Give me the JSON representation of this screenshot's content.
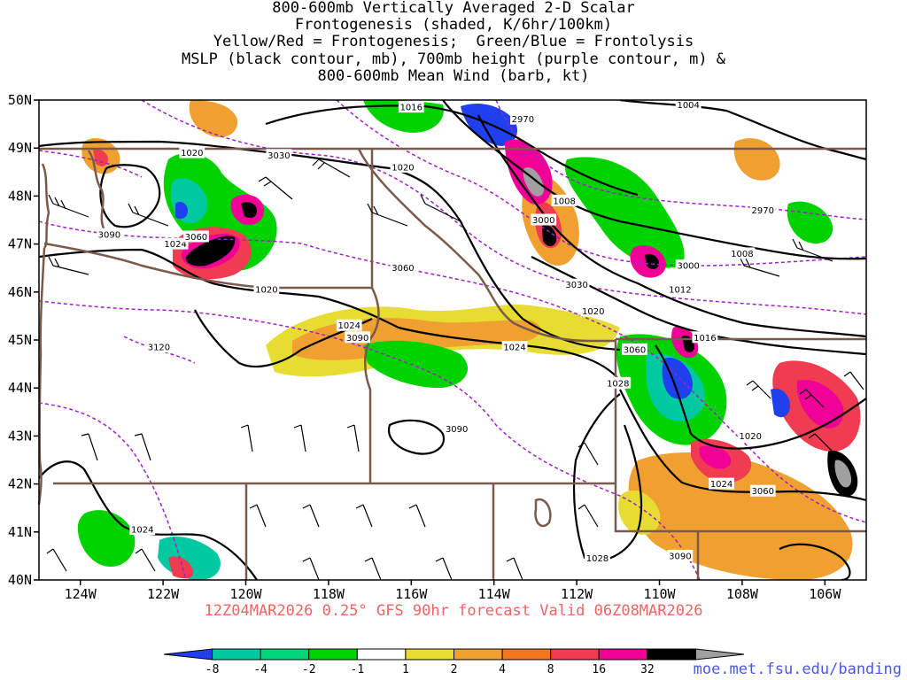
{
  "title_lines": [
    "800-600mb Vertically Averaged 2-D Scalar",
    "Frontogenesis (shaded, K/6hr/100km)",
    "Yellow/Red = Frontogenesis;  Green/Blue = Frontolysis",
    "MSLP (black contour, mb), 700mb height (purple contour, m) &",
    "800-600mb Mean Wind (barb, kt)"
  ],
  "map": {
    "lon_range": [
      -125,
      -105
    ],
    "lat_range": [
      40,
      50
    ],
    "lat_ticks": [
      "50N",
      "49N",
      "48N",
      "47N",
      "46N",
      "45N",
      "44N",
      "43N",
      "42N",
      "41N",
      "40N"
    ],
    "lon_ticks": [
      "124W",
      "122W",
      "120W",
      "118W",
      "116W",
      "114W",
      "112W",
      "110W",
      "108W",
      "106W"
    ],
    "colors": {
      "border": "#7a5a4a",
      "mslp": "#000000",
      "height": "#a020c8",
      "frontolysis_strong": "#2040f0",
      "frontolysis": "#00c8a0",
      "frontolysis_weak": "#00d200",
      "frontogenesis_weak": "#e6dc32",
      "frontogenesis": "#f0a030",
      "frontogenesis_mid": "#f07820",
      "frontogenesis_strong": "#f03c50",
      "frontogenesis_max": "#f00096"
    },
    "mslp_labels": [
      {
        "text": "1016",
        "lon": -116.0,
        "lat": 49.85
      },
      {
        "text": "1004",
        "lon": -109.3,
        "lat": 49.9
      },
      {
        "text": "1020",
        "lon": -121.3,
        "lat": 48.9
      },
      {
        "text": "1020",
        "lon": -116.2,
        "lat": 48.6
      },
      {
        "text": "1008",
        "lon": -112.3,
        "lat": 47.9
      },
      {
        "text": "1024",
        "lon": -121.7,
        "lat": 47.0
      },
      {
        "text": "1008",
        "lon": -108.0,
        "lat": 46.8
      },
      {
        "text": "1020",
        "lon": -119.5,
        "lat": 46.05
      },
      {
        "text": "1012",
        "lon": -109.5,
        "lat": 46.05
      },
      {
        "text": "1020",
        "lon": -111.6,
        "lat": 45.6
      },
      {
        "text": "1024",
        "lon": -117.5,
        "lat": 45.3
      },
      {
        "text": "1016",
        "lon": -108.9,
        "lat": 45.05
      },
      {
        "text": "1024",
        "lon": -113.5,
        "lat": 44.85
      },
      {
        "text": "1028",
        "lon": -111.0,
        "lat": 44.1
      },
      {
        "text": "1020",
        "lon": -107.8,
        "lat": 43.0
      },
      {
        "text": "1024",
        "lon": -108.5,
        "lat": 42.0
      },
      {
        "text": "1024",
        "lon": -122.5,
        "lat": 41.05
      },
      {
        "text": "1028",
        "lon": -111.5,
        "lat": 40.45
      }
    ],
    "height_labels": [
      {
        "text": "2970",
        "lon": -113.3,
        "lat": 49.6
      },
      {
        "text": "3030",
        "lon": -119.2,
        "lat": 48.85
      },
      {
        "text": "2970",
        "lon": -107.5,
        "lat": 47.7
      },
      {
        "text": "3000",
        "lon": -112.8,
        "lat": 47.5
      },
      {
        "text": "3090",
        "lon": -123.3,
        "lat": 47.2
      },
      {
        "text": "3060",
        "lon": -121.2,
        "lat": 47.15
      },
      {
        "text": "3060",
        "lon": -116.2,
        "lat": 46.5
      },
      {
        "text": "3000",
        "lon": -109.3,
        "lat": 46.55
      },
      {
        "text": "3030",
        "lon": -112.0,
        "lat": 46.15
      },
      {
        "text": "3090",
        "lon": -117.3,
        "lat": 45.05
      },
      {
        "text": "3060",
        "lon": -110.6,
        "lat": 44.8
      },
      {
        "text": "3120",
        "lon": -122.1,
        "lat": 44.85
      },
      {
        "text": "3090",
        "lon": -114.9,
        "lat": 43.15
      },
      {
        "text": "3060",
        "lon": -107.5,
        "lat": 41.85
      },
      {
        "text": "3090",
        "lon": -109.5,
        "lat": 40.5
      }
    ]
  },
  "colorbar": {
    "labels": [
      "-8",
      "-4",
      "-2",
      "-1",
      "1",
      "2",
      "4",
      "8",
      "16",
      "32"
    ],
    "colors": [
      "#2040f0",
      "#00c8a0",
      "#00d77a",
      "#00d200",
      "#ffffff",
      "#e6dc32",
      "#f0a030",
      "#f07820",
      "#f03c50",
      "#f00096",
      "#000000",
      "#a0a0a0"
    ]
  },
  "footer": {
    "run": "12Z04MAR2026 0.25° GFS 90hr forecast Valid 06Z08MAR2026",
    "credit": "moe.met.fsu.edu/banding"
  }
}
